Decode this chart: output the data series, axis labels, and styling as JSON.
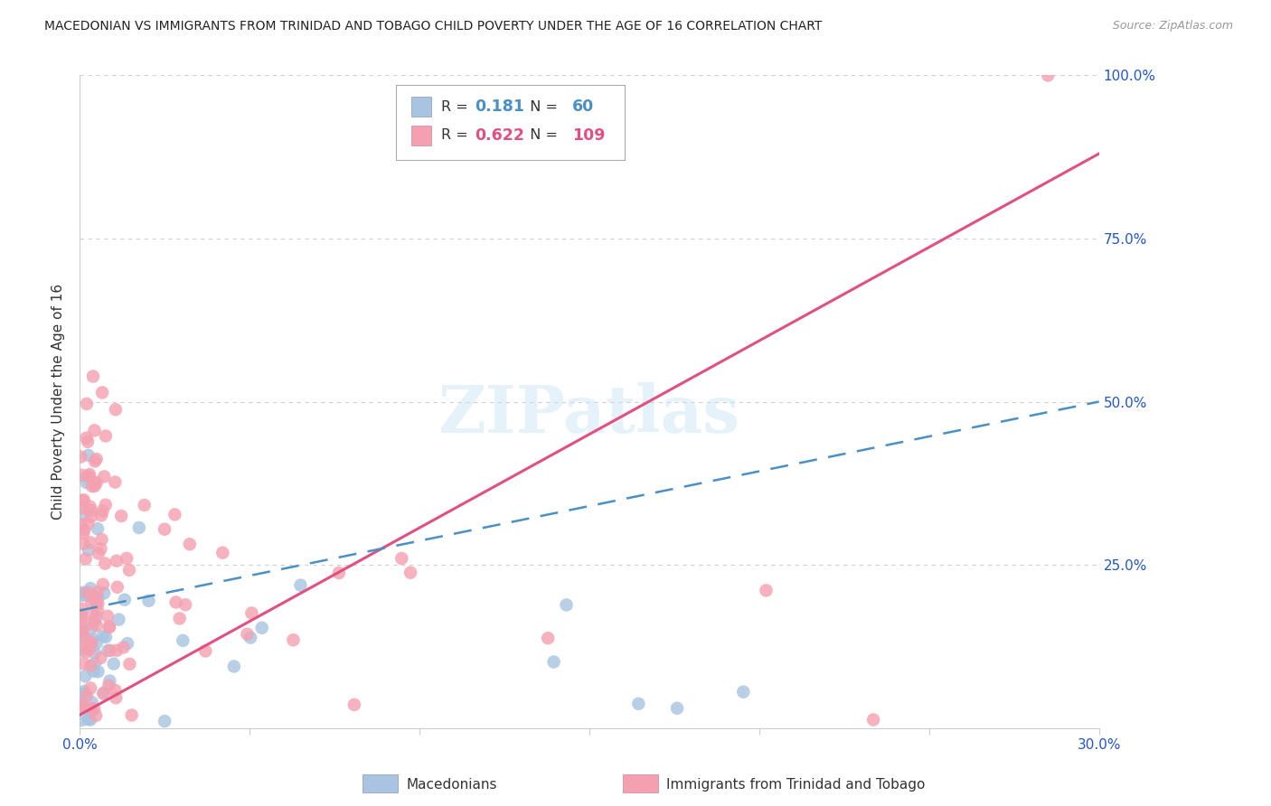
{
  "title": "MACEDONIAN VS IMMIGRANTS FROM TRINIDAD AND TOBAGO CHILD POVERTY UNDER THE AGE OF 16 CORRELATION CHART",
  "source": "Source: ZipAtlas.com",
  "ylabel": "Child Poverty Under the Age of 16",
  "xlim": [
    0.0,
    0.3
  ],
  "ylim": [
    0.0,
    1.0
  ],
  "yticks": [
    0.25,
    0.5,
    0.75,
    1.0
  ],
  "ytick_labels": [
    "25.0%",
    "50.0%",
    "75.0%",
    "100.0%"
  ],
  "xtick_labels": [
    "0.0%",
    "",
    "",
    "",
    "",
    "",
    "30.0%"
  ],
  "macedonian_color": "#a8c4e0",
  "trinidad_color": "#f4a0b0",
  "trendline_mac_color": "#4a90c4",
  "trendline_tri_color": "#e05080",
  "R_mac": 0.181,
  "N_mac": 60,
  "R_tri": 0.622,
  "N_tri": 109,
  "legend_label_mac": "Macedonians",
  "legend_label_tri": "Immigrants from Trinidad and Tobago",
  "watermark": "ZIPatlas",
  "background_color": "#ffffff",
  "grid_color": "#d0d0d0",
  "axis_label_color": "#2255cc",
  "title_color": "#222222",
  "source_color": "#999999",
  "trendline_tri_y0": 0.02,
  "trendline_tri_y1": 0.88,
  "trendline_mac_y0": 0.18,
  "trendline_mac_y1": 0.5
}
